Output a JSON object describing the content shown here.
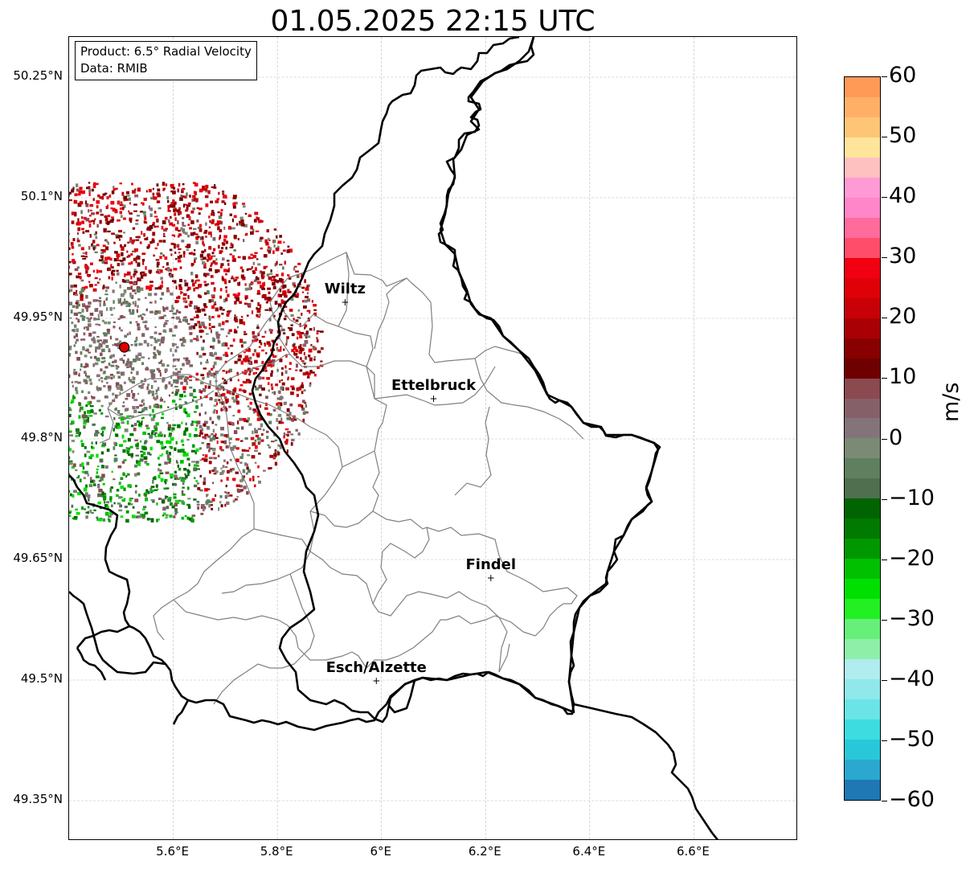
{
  "title": "01.05.2025 22:15 UTC",
  "info_box": {
    "product": "Product: 6.5° Radial Velocity",
    "data": "Data: RMIB"
  },
  "axes": {
    "lat_labels": [
      "50.25°N",
      "50.1°N",
      "49.95°N",
      "49.8°N",
      "49.65°N",
      "49.5°N",
      "49.35°N"
    ],
    "lon_labels": [
      "5.6°E",
      "5.8°E",
      "6°E",
      "6.2°E",
      "6.4°E",
      "6.6°E"
    ],
    "lon_range": [
      5.4,
      6.8
    ],
    "lat_range": [
      49.3,
      50.3
    ],
    "gridlines": "dashed"
  },
  "cities": [
    {
      "name": "Wiltz",
      "lon": 5.93,
      "lat": 49.97
    },
    {
      "name": "Ettelbruck",
      "lon": 6.1,
      "lat": 49.85
    },
    {
      "name": "Findel",
      "lon": 6.21,
      "lat": 49.627
    },
    {
      "name": "Esch/Alzette",
      "lon": 5.99,
      "lat": 49.499
    }
  ],
  "radar_site": {
    "lon": 5.506,
    "lat": 49.914,
    "marker_color": "#e00000"
  },
  "colorbar": {
    "unit": "m/s",
    "min": -60,
    "max": 60,
    "tick_labels": [
      "60",
      "50",
      "40",
      "30",
      "20",
      "10",
      "0",
      "−10",
      "−20",
      "−30",
      "−40",
      "−50",
      "−60"
    ],
    "tick_values": [
      60,
      50,
      40,
      30,
      20,
      10,
      0,
      -10,
      -20,
      -30,
      -40,
      -50,
      -60
    ],
    "colors_top_to_bottom": [
      "#ff9a56",
      "#ffb066",
      "#ffc577",
      "#ffe59a",
      "#ffc0c0",
      "#ff9ad4",
      "#ff86c9",
      "#ff6b9a",
      "#ff4d6a",
      "#f00010",
      "#e00008",
      "#c80008",
      "#a80004",
      "#880000",
      "#6f0000",
      "#8a4a50",
      "#866068",
      "#84747a",
      "#7a8a74",
      "#5f7f5f",
      "#4f6f4f",
      "#006400",
      "#007a00",
      "#009800",
      "#00c000",
      "#00e000",
      "#22f022",
      "#66f07a",
      "#8ef0a8",
      "#b0ecf0",
      "#90e8ea",
      "#6ae4e6",
      "#3cdce0",
      "#28c8d8",
      "#2aa8d0",
      "#1f77b4"
    ]
  },
  "colors": {
    "border": "#000000",
    "canton_lines": "#808080",
    "grid": "#bbbbbb"
  }
}
